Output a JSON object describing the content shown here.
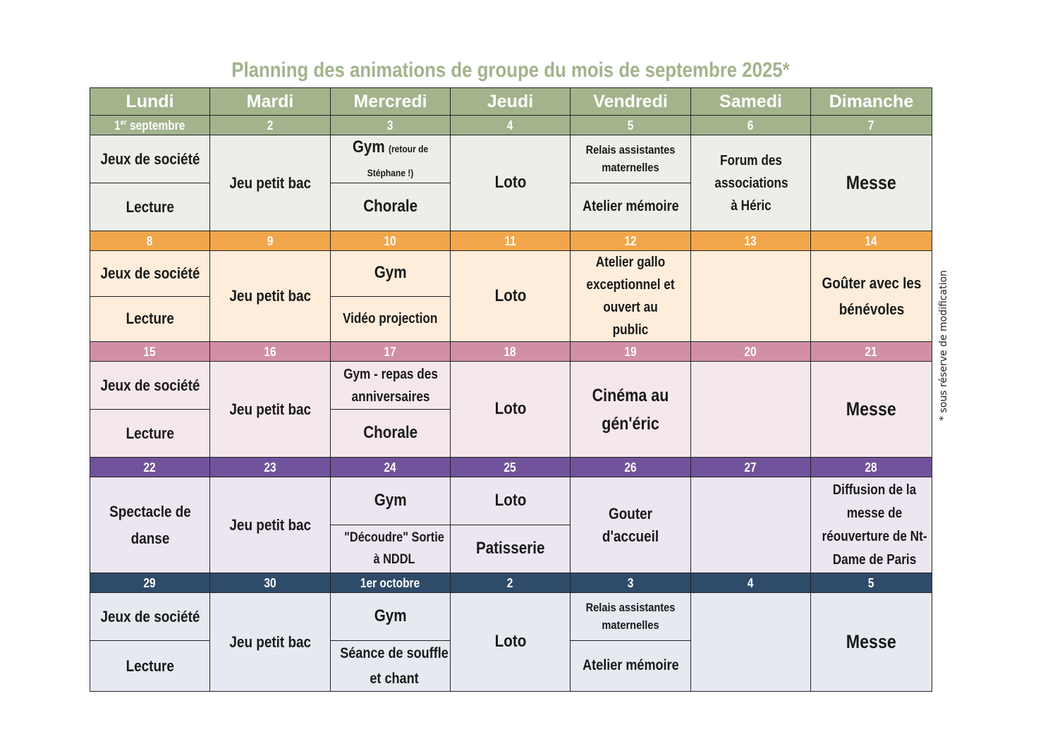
{
  "title": "Planning des animations de groupe du mois de septembre 2025*",
  "note": "* sous réserve de modification",
  "days": [
    "Lundi",
    "Mardi",
    "Mercredi",
    "Jeudi",
    "Vendredi",
    "Samedi",
    "Dimanche"
  ],
  "colors": {
    "header": "#a3b38c",
    "week1": "#a3b38c",
    "week2": "#f2a64b",
    "week3": "#d18fa5",
    "week4": "#71539c",
    "week5": "#2f4b6a"
  },
  "weeks": [
    {
      "dates": {
        "d0_num": "1",
        "d0_sup": "er",
        "d0_rest": " septembre",
        "d1": "2",
        "d2": "3",
        "d3": "4",
        "d4": "5",
        "d5": "6",
        "d6": "7"
      },
      "lundi_a": "Jeux de société",
      "lundi_b": "Lecture",
      "mardi": "Jeu petit bac",
      "mercredi_a": "Gym",
      "mercredi_a_note": "(retour de Stéphane !)",
      "mercredi_b": "Chorale",
      "jeudi": "Loto",
      "vendredi_a": "Relais assistantes maternelles",
      "vendredi_b": "Atelier mémoire",
      "samedi": "Forum des associations à Héric",
      "dimanche": "Messe"
    },
    {
      "dates": [
        "8",
        "9",
        "10",
        "11",
        "12",
        "13",
        "14"
      ],
      "lundi_a": "Jeux de société",
      "lundi_b": "Lecture",
      "mardi": "Jeu petit bac",
      "mercredi_a": "Gym",
      "mercredi_b": "Vidéo projection",
      "jeudi": "Loto",
      "vendredi": "Atelier gallo exceptionnel et ouvert au public",
      "samedi": "",
      "dimanche": "Goûter avec les bénévoles"
    },
    {
      "dates": [
        "15",
        "16",
        "17",
        "18",
        "19",
        "20",
        "21"
      ],
      "lundi_a": "Jeux de société",
      "lundi_b": "Lecture",
      "mardi": "Jeu petit bac",
      "mercredi_a": "Gym - repas des anniversaires",
      "mercredi_b": "Chorale",
      "jeudi": "Loto",
      "vendredi": "Cinéma au gén'éric",
      "samedi": "",
      "dimanche": "Messe"
    },
    {
      "dates": [
        "22",
        "23",
        "24",
        "25",
        "26",
        "27",
        "28"
      ],
      "lundi": "Spectacle de danse",
      "mardi": "Jeu petit bac",
      "mercredi_a": "Gym",
      "mercredi_b": "\"Découdre\"  Sortie à NDDL",
      "jeudi_a": "Loto",
      "jeudi_b": "Patisserie",
      "vendredi": "Gouter d'accueil",
      "samedi": "",
      "dimanche": "Diffusion de la messe de réouverture de Nt-Dame de Paris"
    },
    {
      "dates": [
        "29",
        "30",
        "1er octobre",
        "2",
        "3",
        "4",
        "5"
      ],
      "lundi_a": "Jeux de société",
      "lundi_b": "Lecture",
      "mardi": "Jeu petit bac",
      "mercredi_a": "Gym",
      "mercredi_b": "Séance de souffle et chant",
      "jeudi": "Loto",
      "vendredi_a": "Relais assistantes maternelles",
      "vendredi_b": "Atelier mémoire",
      "samedi": "",
      "dimanche": "Messe"
    }
  ]
}
